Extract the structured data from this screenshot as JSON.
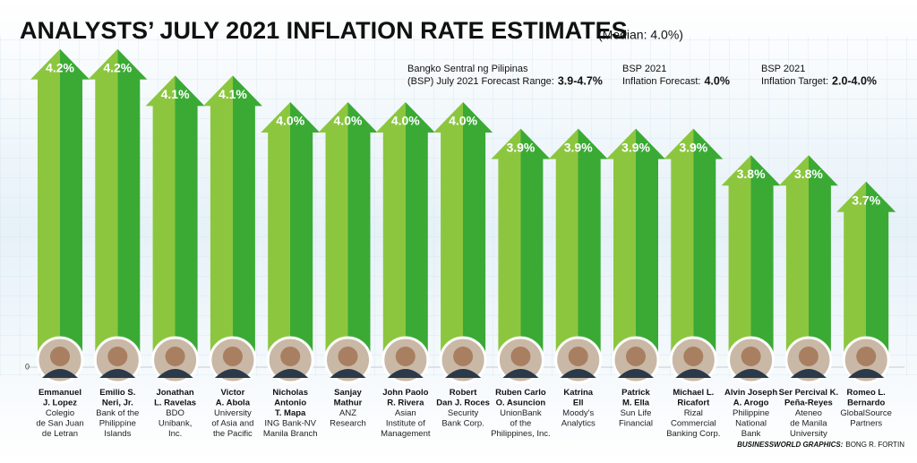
{
  "chart_data": {
    "type": "arrow-bar",
    "title": "ANALYSTS’ JULY 2021 INFLATION RATE ESTIMATES",
    "subtitle": "(Median: 4.0%)",
    "categories": [
      "Emmanuel\nJ. Lopez",
      "Emilio S.\nNeri, Jr.",
      "Jonathan\nL. Ravelas",
      "Victor\nA. Abola",
      "Nicholas\nAntonio\nT. Mapa",
      "Sanjay\nMathur",
      "John Paolo\nR. Rivera",
      "Robert\nDan J. Roces",
      "Ruben Carlo\nO. Asuncion",
      "Katrina\nEll",
      "Patrick\nM. Ella",
      "Michael L.\nRicafort",
      "Alvin Joseph\nA. Arogo",
      "Ser Percival K.\nPeña-Reyes",
      "Romeo L.\nBernardo"
    ],
    "affiliations": [
      "Colegio\nde San Juan\nde Letran",
      "Bank of the\nPhilippine\nIslands",
      "BDO\nUnibank,\nInc.",
      "University\nof Asia and\nthe Pacific",
      "ING Bank-NV\nManila Branch",
      "ANZ\nResearch",
      "Asian\nInstitute of\nManagement",
      "Security\nBank Corp.",
      "UnionBank\nof the\nPhilippines, Inc.",
      "Moody's\nAnalytics",
      "Sun Life\nFinancial",
      "Rizal\nCommercial\nBanking Corp.",
      "Philippine\nNational\nBank",
      "Ateneo\nde Manila\nUniversity",
      "GlobalSource\nPartners"
    ],
    "values": [
      4.2,
      4.2,
      4.1,
      4.1,
      4.0,
      4.0,
      4.0,
      4.0,
      3.9,
      3.9,
      3.9,
      3.9,
      3.8,
      3.8,
      3.7
    ],
    "value_labels": [
      "4.2%",
      "4.2%",
      "4.1%",
      "4.1%",
      "4.0%",
      "4.0%",
      "4.0%",
      "4.0%",
      "3.9%",
      "3.9%",
      "3.9%",
      "3.9%",
      "3.8%",
      "3.8%",
      "3.7%"
    ],
    "colors": [
      "#8cc63f",
      "#3aaa35"
    ],
    "ylim": [
      3.0,
      4.25
    ],
    "baseline_label": "0",
    "annotations": [
      {
        "text": "Bangko Sentral ng Pilipinas\n(BSP) July 2021 Forecast Range:",
        "value": "3.9-4.7%"
      },
      {
        "text": "BSP 2021\nInflation Forecast:",
        "value": "4.0%"
      },
      {
        "text": "BSP 2021\nInflation Target:",
        "value": "2.0-4.0%"
      }
    ],
    "credit": {
      "org": "BUSINESSWORLD GRAPHICS:",
      "author": "BONG R. FORTIN"
    }
  }
}
